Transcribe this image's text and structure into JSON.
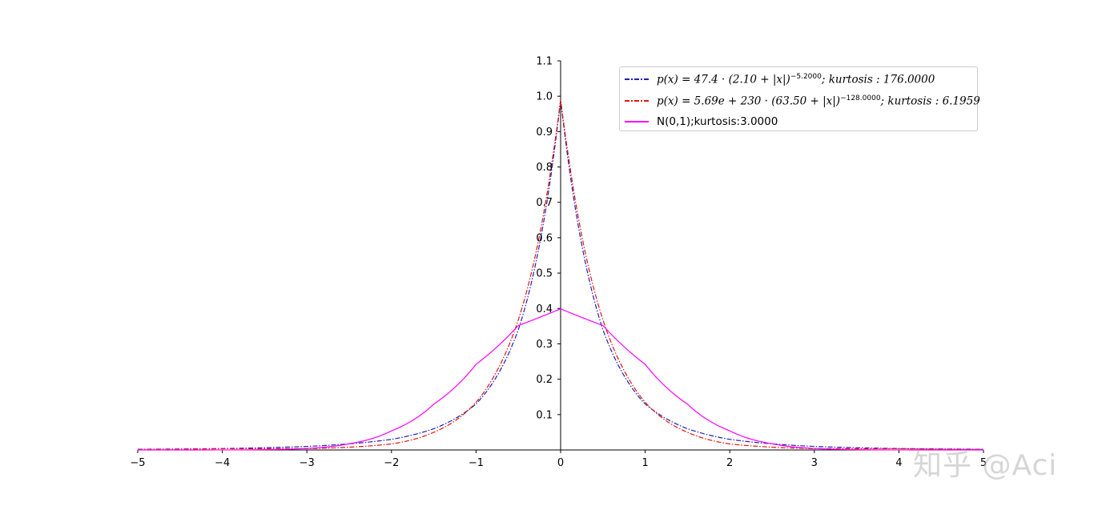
{
  "chart_data": {
    "type": "line",
    "title": "",
    "xlabel": "",
    "ylabel": "",
    "xlim": [
      -5,
      5
    ],
    "ylim": [
      0,
      1.1
    ],
    "x_ticks": [
      "−5",
      "−4",
      "−3",
      "−2",
      "−1",
      "0",
      "1",
      "2",
      "3",
      "4",
      "5"
    ],
    "y_ticks": [
      "0.1",
      "0.2",
      "0.3",
      "0.4",
      "0.5",
      "0.6",
      "0.7",
      "0.8",
      "0.9",
      "1.0",
      "1.1"
    ],
    "grid": false,
    "legend_position": "top-right",
    "series": [
      {
        "name": "p(x) = 47.4 · (2.10 + |x|)^−5.2000; kurtosis : 176.0000",
        "color": "#1f1fbf",
        "style": "dash-dot",
        "x": [
          -5,
          -4,
          -3,
          -2,
          -1.5,
          -1,
          -0.75,
          -0.5,
          -0.25,
          -0.1,
          0,
          0.1,
          0.25,
          0.5,
          0.75,
          1,
          1.5,
          2,
          3,
          4,
          5
        ],
        "y": [
          0.002,
          0.004,
          0.01,
          0.03,
          0.06,
          0.13,
          0.21,
          0.34,
          0.58,
          0.8,
          0.99,
          0.8,
          0.58,
          0.34,
          0.21,
          0.13,
          0.06,
          0.03,
          0.01,
          0.004,
          0.002
        ]
      },
      {
        "name": "p(x) = 5.69e + 230 · (63.50 + |x|)^−128.0000; kurtosis : 6.1959",
        "color": "#e8150c",
        "style": "dash-dot",
        "x": [
          -5,
          -4,
          -3,
          -2,
          -1.5,
          -1,
          -0.75,
          -0.5,
          -0.25,
          -0.1,
          0,
          0.1,
          0.25,
          0.5,
          0.75,
          1,
          1.5,
          2,
          3,
          4,
          5
        ],
        "y": [
          0.0013,
          0.0035,
          0.0037,
          0.017,
          0.05,
          0.135,
          0.225,
          0.368,
          0.606,
          0.818,
          0.99,
          0.818,
          0.606,
          0.368,
          0.225,
          0.135,
          0.05,
          0.017,
          0.0037,
          0.0035,
          0.0013
        ]
      },
      {
        "name": "N(0,1);kurtosis:3.0000",
        "color": "#ff00ff",
        "style": "solid",
        "x": [
          -5,
          -4,
          -3.5,
          -3,
          -2.5,
          -2,
          -1.5,
          -1,
          -0.5,
          0,
          0.5,
          1,
          1.5,
          2,
          2.5,
          3,
          3.5,
          4,
          5
        ],
        "y": [
          1.5e-06,
          0.00013,
          0.00087,
          0.0044,
          0.0175,
          0.054,
          0.1295,
          0.242,
          0.352,
          0.399,
          0.352,
          0.242,
          0.1295,
          0.054,
          0.0175,
          0.0044,
          0.00087,
          0.00013,
          1.5e-06
        ]
      }
    ]
  },
  "legend": {
    "entries": [
      {
        "prefix": "p(x) = 47.4 · (2.10 + |x|)",
        "exp": "−5.2000",
        "suffix": "; kurtosis : 176.0000"
      },
      {
        "prefix": "p(x) = 5.69e + 230 · (63.50 + |x|)",
        "exp": "−128.0000",
        "suffix": "; kurtosis : 6.1959"
      },
      {
        "text": "N(0,1);kurtosis:3.0000"
      }
    ]
  },
  "watermark": "知乎 @Aci"
}
